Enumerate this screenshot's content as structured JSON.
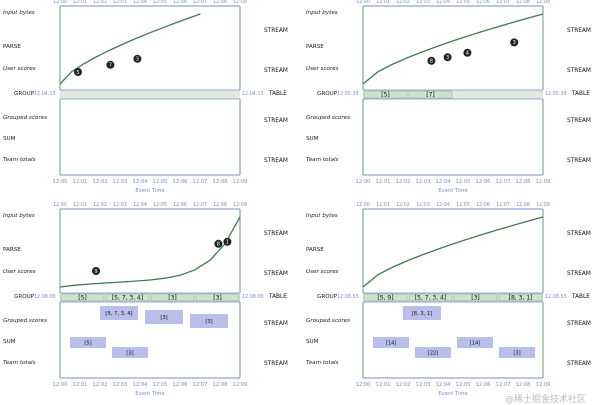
{
  "row_labels": {
    "input_bytes": "Input bytes",
    "parse": "PARSE",
    "user_scores": "User scores",
    "group": "GROUP",
    "grouped_scores": "Grouped scores",
    "sum": "SUM",
    "team_totals": "Team totals"
  },
  "stream_label": "STREAM",
  "table_label": "TABLE",
  "x_axis_title": "Event Time",
  "time_ticks": [
    "12:00",
    "12:01",
    "12:02",
    "12:03",
    "12:04",
    "12:05",
    "12:06",
    "12:07",
    "12:08",
    "12:09"
  ],
  "side_tick": "12:09",
  "panels": [
    {
      "id": "top-left",
      "group_time_left": "12:04:13",
      "group_time_right": "12:04:13",
      "tables": [],
      "scores": [
        {
          "label": "5",
          "t": 0.1
        },
        {
          "label": "7",
          "t": 0.28
        },
        {
          "label": "3",
          "t": 0.43
        }
      ]
    },
    {
      "id": "top-right",
      "group_time_left": "12:05:39",
      "group_time_right": "12:05:39",
      "tables": [
        "[5]",
        "[7]"
      ],
      "scores": [
        {
          "label": "8",
          "t": 0.38
        },
        {
          "label": "3",
          "t": 0.47
        },
        {
          "label": "4",
          "t": 0.58
        },
        {
          "label": "3",
          "t": 0.84
        }
      ]
    },
    {
      "id": "bottom-left",
      "group_time_left": "12:08:00",
      "group_time_right": "12:08:00",
      "tables": [
        "[5]",
        "[5, 7, 3, 4]",
        "[3]",
        "[3]"
      ],
      "scores": [
        {
          "label": "9",
          "t": 0.2
        },
        {
          "label": "8",
          "t": 0.88
        },
        {
          "label": "1",
          "t": 0.93
        }
      ],
      "grouped_boxes": [
        "[5, 7, 3, 4]",
        "[3]",
        "[3]"
      ],
      "sum_boxes": [
        "[5]",
        "[3]"
      ]
    },
    {
      "id": "bottom-right",
      "group_time_left": "12:08:53",
      "group_time_right": "12:08:53",
      "tables": [
        "[5, 9]",
        "[5, 7, 3, 4]",
        "[3]",
        "[8, 3, 1]"
      ],
      "scores": [],
      "grouped_boxes": [
        "[8, 3, 1]"
      ],
      "sum_boxes": [
        "[14]",
        "[22]",
        "[14]",
        "[3]"
      ]
    }
  ],
  "watermark": "@稀土掘金技术社区",
  "colors": {
    "axis_blue": "#7b8fc4",
    "axis_green": "#6a9b78",
    "curve": "#3b7f4d",
    "group_band": "#e3e8e3",
    "table_fill": "#cde3cd",
    "box_fill": "#aeb3e6"
  }
}
